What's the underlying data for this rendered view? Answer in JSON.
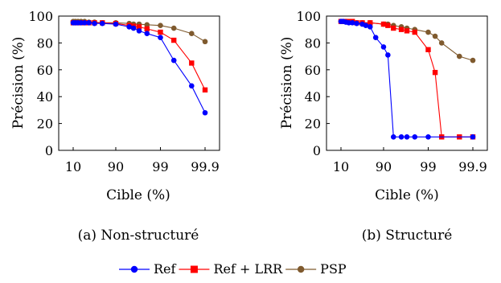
{
  "colors": {
    "Ref": "#0000ff",
    "Ref + LRR": "#ff0000",
    "PSP": "#7f5a2e"
  },
  "legend": {
    "placement": "bottom-center",
    "entries": [
      {
        "label": "Ref",
        "marker": "circle"
      },
      {
        "label": "Ref + LRR",
        "marker": "square"
      },
      {
        "label": "PSP",
        "marker": "circle"
      }
    ]
  },
  "chart_data": [
    {
      "type": "line",
      "caption": "(a) Non-structuré",
      "xlabel": "Cible (%)",
      "ylabel": "Précision (%)",
      "xscale": "log-complement",
      "xticks": [
        "10",
        "90",
        "99",
        "99.9"
      ],
      "yticks": [
        0,
        20,
        40,
        60,
        80,
        100
      ],
      "ylim": [
        0,
        100
      ],
      "grid": false,
      "series": [
        {
          "name": "Ref",
          "x": [
            10,
            20,
            30,
            40,
            50,
            60,
            70,
            80,
            90,
            95,
            96,
            97,
            98,
            99,
            99.5,
            99.8,
            99.9
          ],
          "y": [
            95,
            95,
            95,
            95,
            95,
            95,
            94.5,
            94.5,
            94,
            92,
            91,
            89,
            87,
            84,
            67,
            48,
            28
          ]
        },
        {
          "name": "Ref + LRR",
          "x": [
            10,
            20,
            30,
            40,
            50,
            60,
            70,
            80,
            90,
            95,
            96,
            97,
            98,
            99,
            99.5,
            99.8,
            99.9
          ],
          "y": [
            95,
            95,
            95,
            95,
            95,
            95,
            95,
            95,
            94.5,
            93,
            92.5,
            92,
            90.5,
            88,
            82,
            65,
            45
          ]
        },
        {
          "name": "PSP",
          "x": [
            10,
            20,
            30,
            40,
            50,
            60,
            70,
            80,
            90,
            95,
            96,
            97,
            98,
            99,
            99.5,
            99.8,
            99.9
          ],
          "y": [
            96,
            96,
            96,
            96,
            96,
            95.5,
            95.5,
            95,
            95,
            94.5,
            94,
            94,
            93.5,
            93,
            91,
            87,
            81
          ]
        }
      ]
    },
    {
      "type": "line",
      "caption": "(b) Structuré",
      "xlabel": "Cible (%)",
      "ylabel": "Précision (%)",
      "xscale": "log-complement",
      "xticks": [
        "10",
        "90",
        "99",
        "99.9"
      ],
      "yticks": [
        0,
        20,
        40,
        60,
        80,
        100
      ],
      "ylim": [
        0,
        100
      ],
      "grid": false,
      "series": [
        {
          "name": "Ref",
          "x": [
            10,
            20,
            30,
            40,
            50,
            60,
            70,
            75,
            80,
            85,
            90,
            92,
            94,
            96,
            97,
            98,
            99,
            99.9
          ],
          "y": [
            96,
            96,
            95.5,
            95,
            95,
            94.5,
            94,
            93,
            92,
            84,
            77,
            71,
            10,
            10,
            10,
            10,
            10,
            10
          ]
        },
        {
          "name": "Ref + LRR",
          "x": [
            10,
            20,
            30,
            40,
            50,
            60,
            70,
            80,
            90,
            92,
            94,
            96,
            97,
            98,
            99,
            99.3,
            99.5,
            99.8,
            99.9
          ],
          "y": [
            96,
            96,
            96,
            96,
            96,
            95,
            95,
            95,
            94,
            93,
            91,
            90,
            89,
            88,
            75,
            58,
            10,
            10,
            10
          ]
        },
        {
          "name": "PSP",
          "x": [
            10,
            20,
            30,
            40,
            50,
            60,
            70,
            80,
            90,
            92,
            94,
            96,
            97,
            98,
            99,
            99.3,
            99.5,
            99.8,
            99.9
          ],
          "y": [
            96,
            96,
            96,
            95.5,
            95.5,
            95,
            95,
            95,
            94,
            94,
            93,
            92,
            91,
            90,
            88,
            85,
            80,
            70,
            67
          ]
        }
      ]
    }
  ]
}
